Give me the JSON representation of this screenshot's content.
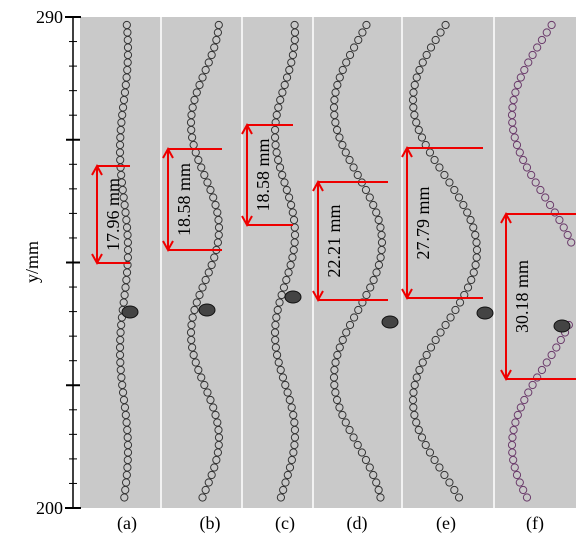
{
  "chart_data": {
    "type": "bubble-panels",
    "y_label": "y/mm",
    "ylim": [
      200,
      290
    ],
    "yticks": [
      200,
      290
    ],
    "major_ticks": [
      222.5,
      245,
      267.5
    ],
    "minor_ticks": [
      285.5,
      281,
      276.5,
      272,
      263,
      258.5,
      254,
      249.5,
      240.5,
      236,
      231.5,
      227,
      218,
      213.5,
      209,
      204.5
    ],
    "panels": [
      "(a)",
      "(b)",
      "(c)",
      "(d)",
      "(e)",
      "(f)"
    ],
    "annotations": [
      "17.96 mm",
      "18.58 mm",
      "18.58 mm",
      "22.21 mm",
      "27.79 mm",
      "30.18 mm"
    ]
  }
}
